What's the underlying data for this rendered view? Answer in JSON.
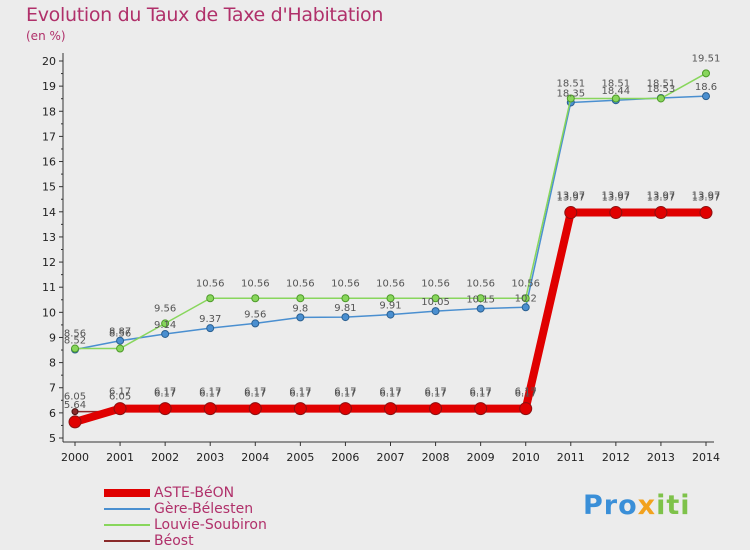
{
  "header": {
    "title": "Evolution du Taux de Taxe d'Habitation",
    "subtitle": "(en %)"
  },
  "brand": {
    "p1": "Pro",
    "p2": "x",
    "p3": "iti"
  },
  "chart_data": {
    "type": "line",
    "x": [
      "2000",
      "2001",
      "2002",
      "2003",
      "2004",
      "2005",
      "2006",
      "2007",
      "2008",
      "2009",
      "2010",
      "2011",
      "2012",
      "2013",
      "2014"
    ],
    "ylim": [
      5,
      20
    ],
    "yticks": [
      5,
      6,
      7,
      8,
      9,
      10,
      11,
      12,
      13,
      14,
      15,
      16,
      17,
      18,
      19,
      20
    ],
    "grid": false,
    "legend_position": "bottom-left",
    "series": [
      {
        "name": "ASTE-BéON",
        "color": "#e00000",
        "values": [
          5.64,
          6.17,
          6.17,
          6.17,
          6.17,
          6.17,
          6.17,
          6.17,
          6.17,
          6.17,
          6.17,
          13.97,
          13.97,
          13.97,
          13.97
        ],
        "labels": [
          "5.64",
          "6.17",
          "6.17",
          "6.17",
          "6.17",
          "6.17",
          "6.17",
          "6.17",
          "6.17",
          "6.17",
          "6.17",
          "13.97",
          "13.97",
          "13.97",
          "13.97"
        ]
      },
      {
        "name": "Gère-Bélesten",
        "color": "#4a8fd0",
        "values": [
          8.52,
          8.87,
          9.14,
          9.37,
          9.56,
          9.8,
          9.81,
          9.91,
          10.05,
          10.15,
          10.2,
          18.35,
          18.44,
          18.53,
          18.6
        ],
        "labels": [
          "8.52",
          "8.87",
          "9.14",
          "9.37",
          "9.56",
          "9.8",
          "9.81",
          "9.91",
          "10.05",
          "10.15",
          "10.2",
          "18.35",
          "18.44",
          "18.53",
          "18.6"
        ]
      },
      {
        "name": "Louvie-Soubiron",
        "color": "#88d65c",
        "values": [
          8.56,
          8.56,
          9.56,
          10.56,
          10.56,
          10.56,
          10.56,
          10.56,
          10.56,
          10.56,
          10.56,
          18.51,
          18.51,
          18.51,
          19.51
        ],
        "labels": [
          "8.56",
          "8.56",
          "9.56",
          "10.56",
          "10.56",
          "10.56",
          "10.56",
          "10.56",
          "10.56",
          "10.56",
          "10.56",
          "18.51",
          "18.51",
          "18.51",
          "19.51"
        ]
      },
      {
        "name": "Béost",
        "color": "#8a2a2a",
        "values": [
          6.05,
          6.05,
          6.17,
          6.17,
          6.17,
          6.17,
          6.17,
          6.17,
          6.17,
          6.17,
          6.17,
          13.97,
          13.97,
          13.97,
          13.97
        ],
        "labels": [
          "6.05",
          "6.05",
          "6.17",
          "6.17",
          "6.17",
          "6.17",
          "6.17",
          "6.17",
          "6.17",
          "6.17",
          "6.17",
          "13.97",
          "13.97",
          "13.97",
          "13.97"
        ]
      }
    ]
  }
}
